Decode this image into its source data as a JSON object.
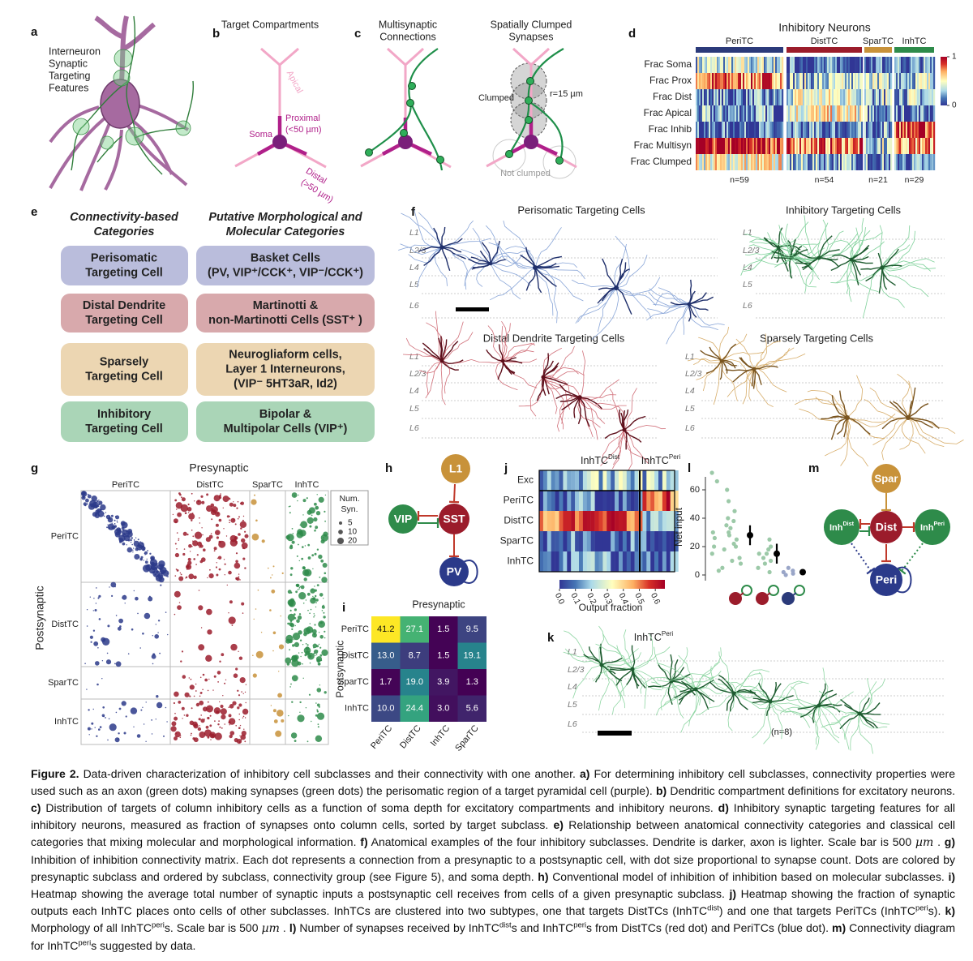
{
  "panels": {
    "a": {
      "label": "a",
      "text_lines": [
        "Interneuron",
        "Synaptic",
        "Targeting",
        "Features"
      ]
    },
    "b": {
      "label": "b",
      "title": "Target Compartments",
      "apical": "Apical",
      "proximal_lines": [
        "Proximal",
        "(<50 µm)"
      ],
      "soma": "Soma",
      "distal_lines": [
        "Distal",
        "(>50 µm)"
      ]
    },
    "c": {
      "label": "c",
      "title_left_lines": [
        "Multisynaptic",
        "Connections"
      ],
      "title_right_lines": [
        "Spatially Clumped",
        "Synapses"
      ],
      "clumped": "Clumped",
      "radius": "r=15 µm",
      "not_clumped": "Not clumped"
    },
    "d": {
      "label": "d",
      "title": "Inhibitory Neurons",
      "groups": [
        {
          "name": "PeriTC",
          "color": "#2b3a7a",
          "n": "n=59"
        },
        {
          "name": "DistTC",
          "color": "#9b1c2b",
          "n": "n=54"
        },
        {
          "name": "SparTC",
          "color": "#c8923a",
          "n": "n=21"
        },
        {
          "name": "InhTC",
          "color": "#2e8b4a",
          "n": "n=29"
        }
      ],
      "rows": [
        "Frac Soma",
        "Frac Prox",
        "Frac Dist",
        "Frac Apical",
        "Frac Inhib",
        "Frac Multisyn",
        "Frac Clumped"
      ],
      "colorbar_lim": [
        0,
        1
      ],
      "colorbar_ticks": [
        0,
        1
      ]
    },
    "e": {
      "label": "e",
      "headers": {
        "left": [
          "Connectivity-based",
          "Categories"
        ],
        "right": [
          "Putative Morphological and",
          "Molecular Categories"
        ]
      },
      "rows": [
        {
          "left": [
            "Perisomatic",
            "Targeting Cell"
          ],
          "right": [
            "Basket Cells",
            "(PV, VIP⁺/CCK⁺, VIP⁻/CCK⁺)"
          ],
          "color": "#babddc"
        },
        {
          "left": [
            "Distal Dendrite",
            "Targeting Cell"
          ],
          "right": [
            "Martinotti &",
            "non-Martinotti Cells (SST⁺ )"
          ],
          "color": "#d8a9ac"
        },
        {
          "left": [
            "Sparsely",
            "Targeting Cell"
          ],
          "right": [
            "Neurogliaform cells,",
            "Layer 1 Interneurons,",
            "(VIP⁻ 5HT3aR, Id2)"
          ],
          "color": "#ecd6b2"
        },
        {
          "left": [
            "Inhibitory",
            "Targeting Cell"
          ],
          "right": [
            "Bipolar &",
            "Multipolar Cells (VIP⁺)"
          ],
          "color": "#aad5b7"
        }
      ]
    },
    "f": {
      "label": "f",
      "titles": [
        "Perisomatic Targeting Cells",
        "Inhibitory Targeting Cells",
        "Distal Dendrite Targeting Cells",
        "Sparsely Targeting Cells"
      ],
      "layers": [
        "L1",
        "L2/3",
        "L4",
        "L5",
        "L6"
      ]
    },
    "g": {
      "label": "g",
      "title": "Presynaptic",
      "ylabel": "Postsynaptic",
      "cols": [
        "PeriTC",
        "DistTC",
        "SparTC",
        "InhTC"
      ],
      "rows": [
        "PeriTC",
        "DistTC",
        "SparTC",
        "InhTC"
      ],
      "legend_title_lines": [
        "Num.",
        "Syn."
      ],
      "size_legend": [
        5,
        10,
        20
      ]
    },
    "h": {
      "label": "h",
      "nodes": [
        "L1",
        "VIP",
        "SST",
        "PV"
      ]
    },
    "i": {
      "label": "i",
      "title": "Presynaptic",
      "ylabel": "Postsynaptic",
      "rows": [
        "PeriTC",
        "DistTC",
        "SparTC",
        "InhTC"
      ],
      "cols": [
        "PeriTC",
        "DistTC",
        "InhTC",
        "SparTC"
      ],
      "values": [
        [
          41.2,
          27.1,
          1.5,
          9.5
        ],
        [
          13.0,
          8.7,
          1.5,
          19.1
        ],
        [
          1.7,
          19.0,
          3.9,
          1.3
        ],
        [
          10.0,
          24.4,
          3.0,
          5.6
        ]
      ],
      "value_labels": [
        [
          "41.2",
          "27.1",
          "1.5",
          "9.5"
        ],
        [
          "13.0",
          "8.7",
          "1.5",
          "19.1"
        ],
        [
          "1.7",
          "19.0",
          "3.9",
          "1.3"
        ],
        [
          "10.0",
          "24.4",
          "3.0",
          "5.6"
        ]
      ]
    },
    "j": {
      "label": "j",
      "headers": [
        {
          "base": "InhTC",
          "sup": "Dist"
        },
        {
          "base": "InhTC",
          "sup": "Peri"
        }
      ],
      "rows": [
        "Exc",
        "PeriTC",
        "DistTC",
        "SparTC",
        "InhTC"
      ],
      "colorbar_lim": [
        0,
        0.66
      ],
      "colorbar_ticks": [
        {
          "value": 0,
          "label": "0.0"
        },
        0.1,
        0.2,
        0.3,
        0.4,
        0.5,
        0.6
      ],
      "colorbar_label": "Output fraction"
    },
    "k": {
      "label": "k",
      "title": {
        "base": "InhTC",
        "sup": "Peri"
      },
      "layers": [
        "L1",
        "L2/3",
        "L4",
        "L5",
        "L6"
      ],
      "n": "(n=8)"
    },
    "l": {
      "label": "l",
      "ylabel": "Net input",
      "ylim": [
        -4,
        76
      ],
      "yticks": [
        0,
        20,
        40,
        60
      ],
      "groups": [
        {
          "color": "#9b1c2b",
          "point_color": "#9cc9a8",
          "points": [
            72,
            66,
            60,
            52,
            45,
            40,
            38,
            35,
            33,
            30,
            30,
            28,
            26,
            25,
            22,
            20,
            20,
            18,
            15,
            12,
            10,
            8,
            5,
            3
          ],
          "mean": 28,
          "error": 7
        },
        {
          "color": "#9b1c2b",
          "point_color": "#9cc9a8",
          "points": [
            25,
            20,
            18,
            15,
            15,
            12,
            10,
            8,
            5,
            2
          ],
          "mean": 15,
          "error": 7
        },
        {
          "color": "#2b3a7a",
          "point_color": "#9aa6c8",
          "points": [
            5,
            3,
            2,
            1,
            0
          ],
          "mean": 2,
          "error": 1
        }
      ]
    },
    "m": {
      "label": "m",
      "spar": "Spar",
      "inh_dist": {
        "base": "Inh",
        "sup": "Dist"
      },
      "dist": "Dist",
      "inh_peri": {
        "base": "Inh",
        "sup": "Peri"
      },
      "peri": "Peri"
    }
  },
  "caption": [
    {
      "text": "Figure 2.",
      "style": "b"
    },
    {
      "text": "  Data-driven characterization of inhibitory cell subclasses and their connectivity with one another. "
    },
    {
      "text": "a)",
      "style": "b"
    },
    {
      "text": " For determining inhibitory cell subclasses, connectivity properties were used such as an axon (green dots) making synapses (green dots) the perisomatic region of a target pyramidal cell (purple). "
    },
    {
      "text": "b)",
      "style": "b"
    },
    {
      "text": " Dendritic compartment definitions for excitatory neurons. "
    },
    {
      "text": "c)",
      "style": "b"
    },
    {
      "text": " Distribution of targets of column inhibitory cells as a function of soma depth for excitatory compartments and inhibitory neurons. "
    },
    {
      "text": "d)",
      "style": "b"
    },
    {
      "text": " Inhibitory synaptic targeting features for all inhibitory neurons, measured as fraction of synapses onto column cells, sorted by target subclass. "
    },
    {
      "text": "e)",
      "style": "b"
    },
    {
      "text": " Relationship between anatomical connectivity categories and classical cell categories that mixing molecular and morphological information. "
    },
    {
      "text": "f)",
      "style": "b"
    },
    {
      "text": " Anatomical examples of the four inhibitory subclasses. Dendrite is darker, axon is lighter. Scale bar is 500 "
    },
    {
      "text": "µm",
      "style": "i"
    },
    {
      "text": " . "
    },
    {
      "text": "g)",
      "style": "b"
    },
    {
      "text": " Inhibition of inhibition connectivity matrix. Each dot represents a connection from a presynaptic to a postsynaptic cell, with dot size proportional to synapse count. Dots are colored by presynaptic subclass and ordered by subclass, connectivity group (see Figure 5), and soma depth. "
    },
    {
      "text": "h)",
      "style": "b"
    },
    {
      "text": " Conventional model of inhibition of inhibition based on molecular subclasses. "
    },
    {
      "text": "i)",
      "style": "b"
    },
    {
      "text": " Heatmap showing the average total number of synaptic inputs a postsynaptic cell receives from cells of a given presynaptic subclass. "
    },
    {
      "text": "j)",
      "style": "b"
    },
    {
      "text": " Heatmap showing the fraction of synaptic outputs each InhTC places onto cells of other subclasses. InhTCs are clustered into two subtypes, one that targets DistTCs (InhTC"
    },
    {
      "text": "dist",
      "style": "sup"
    },
    {
      "text": ") and one that targets PeriTCs (InhTC"
    },
    {
      "text": "peri",
      "style": "sup"
    },
    {
      "text": "s). "
    },
    {
      "text": "k)",
      "style": "b"
    },
    {
      "text": " Morphology of all InhTC"
    },
    {
      "text": "peri",
      "style": "sup"
    },
    {
      "text": "s. Scale bar is 500 "
    },
    {
      "text": "µm",
      "style": "i"
    },
    {
      "text": " . "
    },
    {
      "text": "l)",
      "style": "b"
    },
    {
      "text": " Number of synapses received by InhTC"
    },
    {
      "text": "dist",
      "style": "sup"
    },
    {
      "text": "s and InhTC"
    },
    {
      "text": "peri",
      "style": "sup"
    },
    {
      "text": "s from DistTCs (red dot) and PeriTCs (blue dot). "
    },
    {
      "text": "m)",
      "style": "b"
    },
    {
      "text": " Connectivity diagram for InhTC"
    },
    {
      "text": "peri",
      "style": "sup"
    },
    {
      "text": "s suggested by data."
    }
  ]
}
